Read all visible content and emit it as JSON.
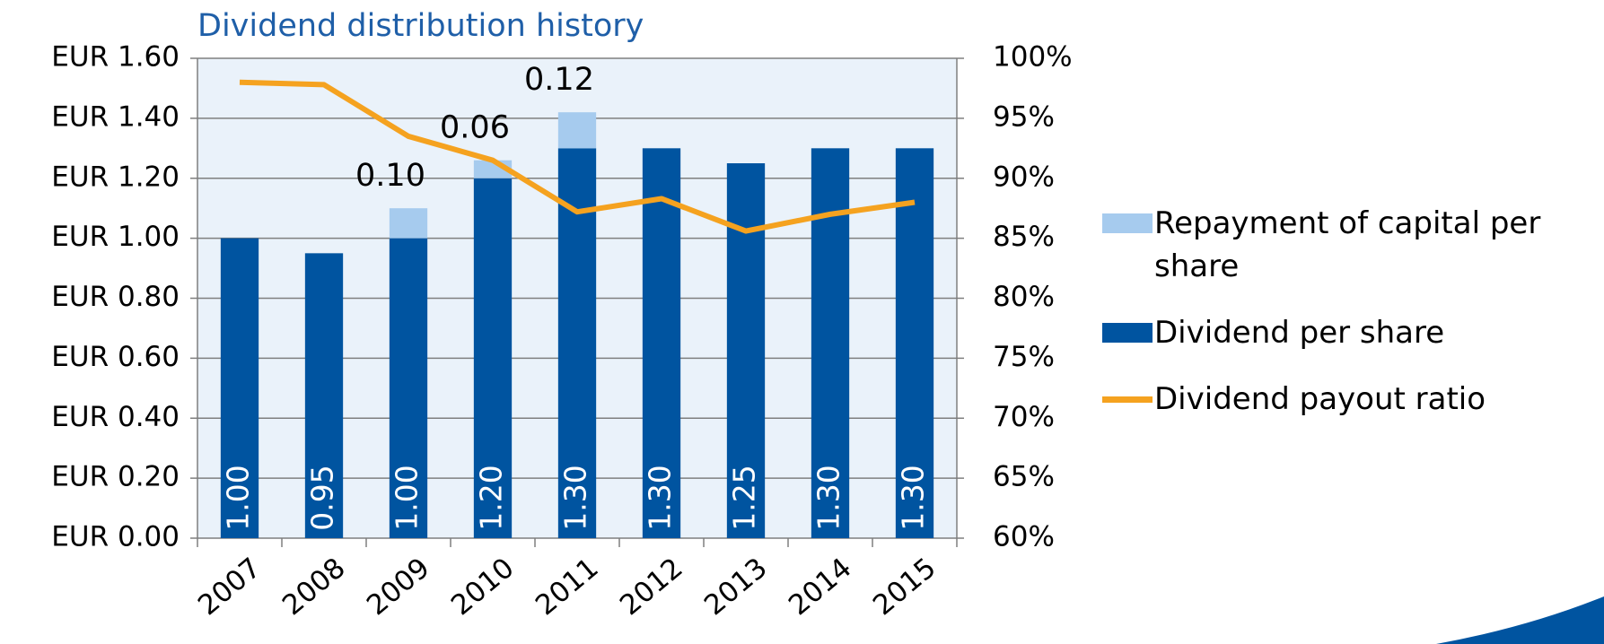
{
  "chart_data": {
    "type": "bar",
    "title": "Dividend distribution history",
    "categories": [
      "2007",
      "2008",
      "2009",
      "2010",
      "2011",
      "2012",
      "2013",
      "2014",
      "2015"
    ],
    "series": [
      {
        "name": "Repayment of capital per share",
        "type": "bar",
        "color": "#a6cbee",
        "values": [
          null,
          null,
          0.1,
          0.06,
          0.12,
          null,
          null,
          null,
          null
        ],
        "value_labels": [
          null,
          null,
          "0.10",
          "0.06",
          "0.12",
          null,
          null,
          null,
          null
        ]
      },
      {
        "name": "Dividend per share",
        "type": "bar",
        "color": "#0054a0",
        "values": [
          1.0,
          0.95,
          1.0,
          1.2,
          1.3,
          1.3,
          1.25,
          1.3,
          1.3
        ],
        "value_labels": [
          "1.00",
          "0.95",
          "1.00",
          "1.20",
          "1.30",
          "1.30",
          "1.25",
          "1.30",
          "1.30"
        ]
      },
      {
        "name": "Dividend payout ratio",
        "type": "line",
        "axis": "y2",
        "color": "#f5a21f",
        "values": [
          98,
          97.8,
          93.5,
          91.5,
          87.2,
          88.3,
          85.6,
          87,
          88
        ]
      }
    ],
    "ylim": [
      0,
      1.6
    ],
    "yticks": [
      {
        "value": 0,
        "label": "EUR 0.00"
      },
      {
        "value": 0.2,
        "label": "EUR 0.20"
      },
      {
        "value": 0.4,
        "label": "EUR 0.40"
      },
      {
        "value": 0.6,
        "label": "EUR 0.60"
      },
      {
        "value": 0.8,
        "label": "EUR 0.80"
      },
      {
        "value": 1.0,
        "label": "EUR 1.00"
      },
      {
        "value": 1.2,
        "label": "EUR 1.20"
      },
      {
        "value": 1.4,
        "label": "EUR 1.40"
      },
      {
        "value": 1.6,
        "label": "EUR 1.60"
      }
    ],
    "y2lim": [
      60,
      100
    ],
    "y2ticks": [
      {
        "value": 60,
        "label": "60%"
      },
      {
        "value": 65,
        "label": "65%"
      },
      {
        "value": 70,
        "label": "70%"
      },
      {
        "value": 75,
        "label": "75%"
      },
      {
        "value": 80,
        "label": "80%"
      },
      {
        "value": 85,
        "label": "85%"
      },
      {
        "value": 90,
        "label": "90%"
      },
      {
        "value": 95,
        "label": "95%"
      },
      {
        "value": 100,
        "label": "100%"
      }
    ],
    "legend": "right"
  }
}
